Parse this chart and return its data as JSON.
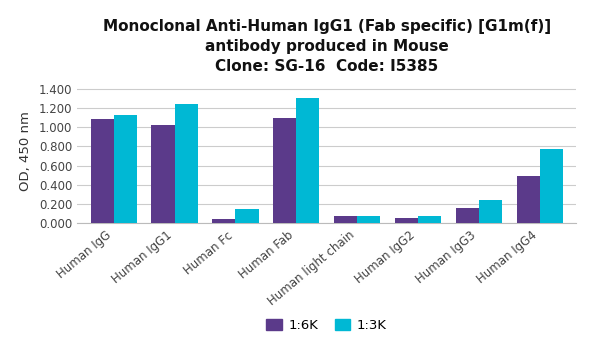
{
  "title_line1": "Monoclonal Anti-Human IgG1 (Fab specific) [G1m(f)]",
  "title_line2": "antibody produced in Mouse",
  "title_line3": "Clone: SG-16  Code: I5385",
  "categories": [
    "Human IgG",
    "Human IgG1",
    "Human Fc",
    "Human Fab",
    "Human light chain",
    "Human IgG2",
    "Human IgG3",
    "Human IgG4"
  ],
  "values_6K": [
    1.09,
    1.02,
    0.045,
    1.1,
    0.072,
    0.058,
    0.163,
    0.495
  ],
  "values_3K": [
    1.125,
    1.24,
    0.152,
    1.305,
    0.08,
    0.078,
    0.243,
    0.778
  ],
  "color_6K": "#5b3a8a",
  "color_3K": "#00b8d4",
  "ylabel": "OD, 450 nm",
  "ylim": [
    0,
    1.5
  ],
  "yticks": [
    0.0,
    0.2,
    0.4,
    0.6,
    0.8,
    1.0,
    1.2,
    1.4
  ],
  "legend_6K": "1:6K",
  "legend_3K": "1:3K",
  "background_color": "#ffffff",
  "grid_color": "#cccccc",
  "title_fontsize": 11,
  "axis_fontsize": 9.5,
  "tick_fontsize": 8.5,
  "legend_fontsize": 9.5
}
